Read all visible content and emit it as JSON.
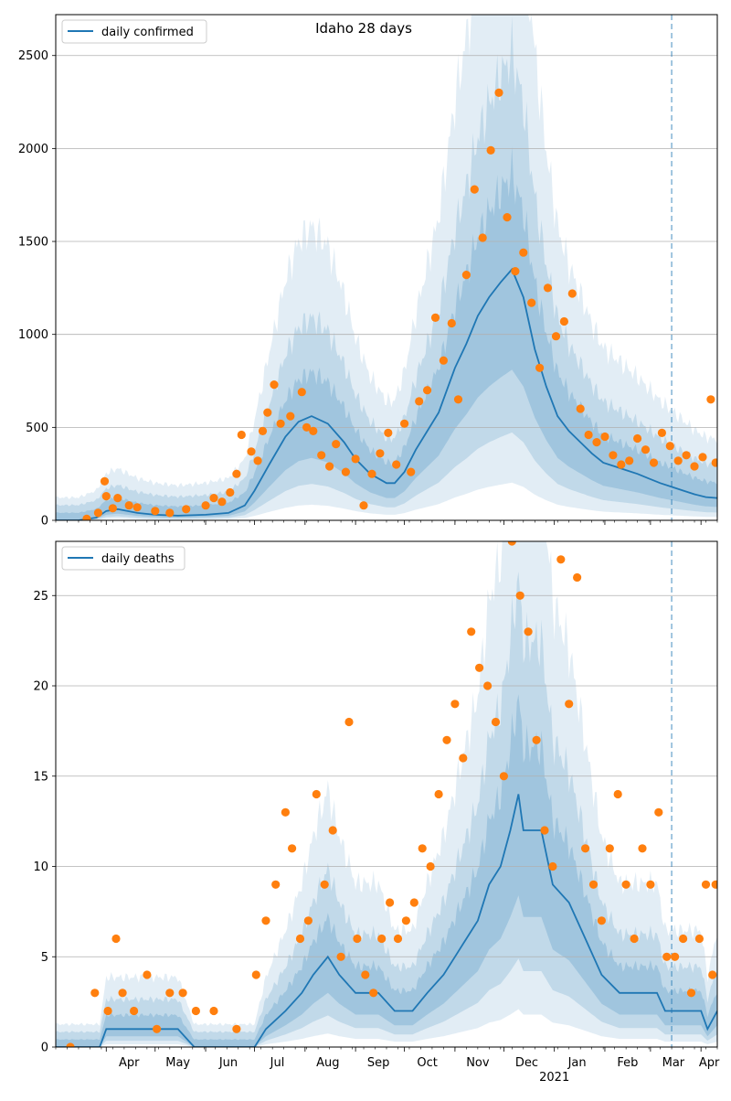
{
  "figure": {
    "title": "Idaho 28 days"
  },
  "colors": {
    "line": "#1f77b4",
    "points": "#ff7f0e",
    "band": "#1f77b4",
    "grid": "#b0b0b0",
    "forecast_line": "#1f77b4"
  },
  "x_axis": {
    "months": [
      "Apr",
      "May",
      "Jun",
      "Jul",
      "Aug",
      "Sep",
      "Oct",
      "Nov",
      "Dec",
      "Jan",
      "Feb",
      "Mar",
      "Apr"
    ],
    "year_label": "2021",
    "start_date": "2020-03-01",
    "end_date": "2021-04-11",
    "forecast_start": "2021-03-14"
  },
  "chart_data": [
    {
      "type": "line",
      "legend": "daily confirmed",
      "legend_position": "top-left",
      "ylim": [
        0,
        2720
      ],
      "yticks": [
        0,
        500,
        1000,
        1500,
        2000,
        2500
      ],
      "grid": "horizontal",
      "line_points": [
        [
          "2020-03-01",
          0
        ],
        [
          "2020-03-15",
          0
        ],
        [
          "2020-03-26",
          15
        ],
        [
          "2020-04-01",
          50
        ],
        [
          "2020-04-08",
          60
        ],
        [
          "2020-04-20",
          40
        ],
        [
          "2020-05-01",
          30
        ],
        [
          "2020-05-15",
          25
        ],
        [
          "2020-06-01",
          30
        ],
        [
          "2020-06-15",
          40
        ],
        [
          "2020-06-25",
          80
        ],
        [
          "2020-07-01",
          160
        ],
        [
          "2020-07-10",
          300
        ],
        [
          "2020-07-20",
          450
        ],
        [
          "2020-07-28",
          530
        ],
        [
          "2020-08-05",
          560
        ],
        [
          "2020-08-15",
          520
        ],
        [
          "2020-08-25",
          420
        ],
        [
          "2020-09-01",
          330
        ],
        [
          "2020-09-10",
          250
        ],
        [
          "2020-09-20",
          200
        ],
        [
          "2020-09-25",
          200
        ],
        [
          "2020-10-01",
          260
        ],
        [
          "2020-10-08",
          380
        ],
        [
          "2020-10-15",
          480
        ],
        [
          "2020-10-22",
          580
        ],
        [
          "2020-11-01",
          820
        ],
        [
          "2020-11-08",
          950
        ],
        [
          "2020-11-15",
          1100
        ],
        [
          "2020-11-22",
          1200
        ],
        [
          "2020-11-29",
          1280
        ],
        [
          "2020-12-06",
          1350
        ],
        [
          "2020-12-13",
          1200
        ],
        [
          "2020-12-20",
          920
        ],
        [
          "2020-12-27",
          720
        ],
        [
          "2021-01-03",
          560
        ],
        [
          "2021-01-10",
          480
        ],
        [
          "2021-01-17",
          420
        ],
        [
          "2021-01-24",
          360
        ],
        [
          "2021-01-31",
          310
        ],
        [
          "2021-02-07",
          290
        ],
        [
          "2021-02-14",
          270
        ],
        [
          "2021-02-21",
          250
        ],
        [
          "2021-02-28",
          225
        ],
        [
          "2021-03-07",
          200
        ],
        [
          "2021-03-14",
          180
        ],
        [
          "2021-03-21",
          160
        ],
        [
          "2021-03-28",
          140
        ],
        [
          "2021-04-04",
          125
        ],
        [
          "2021-04-11",
          120
        ]
      ],
      "observed_points": [
        [
          "2020-03-20",
          8
        ],
        [
          "2020-03-27",
          40
        ],
        [
          "2020-03-31",
          210
        ],
        [
          "2020-04-01",
          130
        ],
        [
          "2020-04-05",
          65
        ],
        [
          "2020-04-08",
          120
        ],
        [
          "2020-04-15",
          80
        ],
        [
          "2020-04-20",
          70
        ],
        [
          "2020-05-01",
          50
        ],
        [
          "2020-05-10",
          40
        ],
        [
          "2020-05-20",
          60
        ],
        [
          "2020-06-01",
          80
        ],
        [
          "2020-06-06",
          120
        ],
        [
          "2020-06-11",
          100
        ],
        [
          "2020-06-16",
          150
        ],
        [
          "2020-06-20",
          250
        ],
        [
          "2020-06-23",
          460
        ],
        [
          "2020-06-29",
          370
        ],
        [
          "2020-07-03",
          320
        ],
        [
          "2020-07-06",
          480
        ],
        [
          "2020-07-09",
          580
        ],
        [
          "2020-07-13",
          730
        ],
        [
          "2020-07-17",
          520
        ],
        [
          "2020-07-23",
          560
        ],
        [
          "2020-07-30",
          690
        ],
        [
          "2020-08-02",
          500
        ],
        [
          "2020-08-06",
          480
        ],
        [
          "2020-08-11",
          350
        ],
        [
          "2020-08-16",
          290
        ],
        [
          "2020-08-20",
          410
        ],
        [
          "2020-08-26",
          260
        ],
        [
          "2020-09-01",
          330
        ],
        [
          "2020-09-06",
          80
        ],
        [
          "2020-09-11",
          250
        ],
        [
          "2020-09-16",
          360
        ],
        [
          "2020-09-21",
          470
        ],
        [
          "2020-09-26",
          300
        ],
        [
          "2020-10-01",
          520
        ],
        [
          "2020-10-05",
          260
        ],
        [
          "2020-10-10",
          640
        ],
        [
          "2020-10-15",
          700
        ],
        [
          "2020-10-20",
          1090
        ],
        [
          "2020-10-25",
          860
        ],
        [
          "2020-10-30",
          1060
        ],
        [
          "2020-11-03",
          650
        ],
        [
          "2020-11-08",
          1320
        ],
        [
          "2020-11-13",
          1780
        ],
        [
          "2020-11-18",
          1520
        ],
        [
          "2020-11-23",
          1990
        ],
        [
          "2020-11-28",
          2300
        ],
        [
          "2020-12-03",
          1630
        ],
        [
          "2020-12-08",
          1340
        ],
        [
          "2020-12-13",
          1440
        ],
        [
          "2020-12-18",
          1170
        ],
        [
          "2020-12-23",
          820
        ],
        [
          "2020-12-28",
          1250
        ],
        [
          "2021-01-02",
          990
        ],
        [
          "2021-01-07",
          1070
        ],
        [
          "2021-01-12",
          1220
        ],
        [
          "2021-01-17",
          600
        ],
        [
          "2021-01-22",
          460
        ],
        [
          "2021-01-27",
          420
        ],
        [
          "2021-02-01",
          450
        ],
        [
          "2021-02-06",
          350
        ],
        [
          "2021-02-11",
          300
        ],
        [
          "2021-02-16",
          320
        ],
        [
          "2021-02-21",
          440
        ],
        [
          "2021-02-26",
          380
        ],
        [
          "2021-03-03",
          310
        ],
        [
          "2021-03-08",
          470
        ],
        [
          "2021-03-13",
          400
        ],
        [
          "2021-03-18",
          320
        ],
        [
          "2021-03-23",
          350
        ],
        [
          "2021-03-28",
          290
        ],
        [
          "2021-04-02",
          340
        ],
        [
          "2021-04-07",
          650
        ],
        [
          "2021-04-10",
          310
        ]
      ]
    },
    {
      "type": "line",
      "legend": "daily deaths",
      "legend_position": "top-left",
      "ylim": [
        0,
        28
      ],
      "yticks": [
        0,
        5,
        10,
        15,
        20,
        25
      ],
      "grid": "horizontal",
      "line_points": [
        [
          "2020-03-01",
          0
        ],
        [
          "2020-03-28",
          0
        ],
        [
          "2020-04-01",
          1
        ],
        [
          "2020-05-15",
          1
        ],
        [
          "2020-05-25",
          0
        ],
        [
          "2020-07-01",
          0
        ],
        [
          "2020-07-08",
          1
        ],
        [
          "2020-07-20",
          2
        ],
        [
          "2020-07-30",
          3
        ],
        [
          "2020-08-06",
          4
        ],
        [
          "2020-08-15",
          5
        ],
        [
          "2020-08-22",
          4
        ],
        [
          "2020-09-01",
          3
        ],
        [
          "2020-09-15",
          3
        ],
        [
          "2020-09-25",
          2
        ],
        [
          "2020-10-06",
          2
        ],
        [
          "2020-10-15",
          3
        ],
        [
          "2020-10-25",
          4
        ],
        [
          "2020-11-01",
          5
        ],
        [
          "2020-11-08",
          6
        ],
        [
          "2020-11-15",
          7
        ],
        [
          "2020-11-22",
          9
        ],
        [
          "2020-11-29",
          10
        ],
        [
          "2020-12-05",
          12
        ],
        [
          "2020-12-10",
          14
        ],
        [
          "2020-12-13",
          12
        ],
        [
          "2020-12-24",
          12
        ],
        [
          "2020-12-31",
          9
        ],
        [
          "2021-01-10",
          8
        ],
        [
          "2021-01-20",
          6
        ],
        [
          "2021-01-30",
          4
        ],
        [
          "2021-02-10",
          3
        ],
        [
          "2021-02-20",
          3
        ],
        [
          "2021-03-05",
          3
        ],
        [
          "2021-03-10",
          2
        ],
        [
          "2021-03-20",
          2
        ],
        [
          "2021-04-01",
          2
        ],
        [
          "2021-04-05",
          1
        ],
        [
          "2021-04-11",
          2
        ]
      ],
      "observed_points": [
        [
          "2020-03-10",
          0
        ],
        [
          "2020-03-25",
          3
        ],
        [
          "2020-04-02",
          2
        ],
        [
          "2020-04-07",
          6
        ],
        [
          "2020-04-11",
          3
        ],
        [
          "2020-04-18",
          2
        ],
        [
          "2020-04-26",
          4
        ],
        [
          "2020-05-02",
          1
        ],
        [
          "2020-05-10",
          3
        ],
        [
          "2020-05-18",
          3
        ],
        [
          "2020-05-26",
          2
        ],
        [
          "2020-06-06",
          2
        ],
        [
          "2020-06-20",
          1
        ],
        [
          "2020-07-02",
          4
        ],
        [
          "2020-07-08",
          7
        ],
        [
          "2020-07-14",
          9
        ],
        [
          "2020-07-20",
          13
        ],
        [
          "2020-07-24",
          11
        ],
        [
          "2020-07-29",
          6
        ],
        [
          "2020-08-03",
          7
        ],
        [
          "2020-08-08",
          14
        ],
        [
          "2020-08-13",
          9
        ],
        [
          "2020-08-18",
          12
        ],
        [
          "2020-08-23",
          5
        ],
        [
          "2020-08-28",
          18
        ],
        [
          "2020-09-02",
          6
        ],
        [
          "2020-09-07",
          4
        ],
        [
          "2020-09-12",
          3
        ],
        [
          "2020-09-17",
          6
        ],
        [
          "2020-09-22",
          8
        ],
        [
          "2020-09-27",
          6
        ],
        [
          "2020-10-02",
          7
        ],
        [
          "2020-10-07",
          8
        ],
        [
          "2020-10-12",
          11
        ],
        [
          "2020-10-17",
          10
        ],
        [
          "2020-10-22",
          14
        ],
        [
          "2020-10-27",
          17
        ],
        [
          "2020-11-01",
          19
        ],
        [
          "2020-11-06",
          16
        ],
        [
          "2020-11-11",
          23
        ],
        [
          "2020-11-16",
          21
        ],
        [
          "2020-11-21",
          20
        ],
        [
          "2020-11-26",
          18
        ],
        [
          "2020-12-01",
          15
        ],
        [
          "2020-12-06",
          28
        ],
        [
          "2020-12-11",
          25
        ],
        [
          "2020-12-16",
          23
        ],
        [
          "2020-12-21",
          17
        ],
        [
          "2020-12-26",
          12
        ],
        [
          "2020-12-31",
          10
        ],
        [
          "2021-01-05",
          27
        ],
        [
          "2021-01-10",
          19
        ],
        [
          "2021-01-15",
          26
        ],
        [
          "2021-01-20",
          11
        ],
        [
          "2021-01-25",
          9
        ],
        [
          "2021-01-30",
          7
        ],
        [
          "2021-02-04",
          11
        ],
        [
          "2021-02-09",
          14
        ],
        [
          "2021-02-14",
          9
        ],
        [
          "2021-02-19",
          6
        ],
        [
          "2021-02-24",
          11
        ],
        [
          "2021-03-01",
          9
        ],
        [
          "2021-03-06",
          13
        ],
        [
          "2021-03-11",
          5
        ],
        [
          "2021-03-16",
          5
        ],
        [
          "2021-03-21",
          6
        ],
        [
          "2021-03-26",
          3
        ],
        [
          "2021-03-31",
          6
        ],
        [
          "2021-04-04",
          9
        ],
        [
          "2021-04-08",
          4
        ],
        [
          "2021-04-10",
          9
        ]
      ]
    }
  ]
}
